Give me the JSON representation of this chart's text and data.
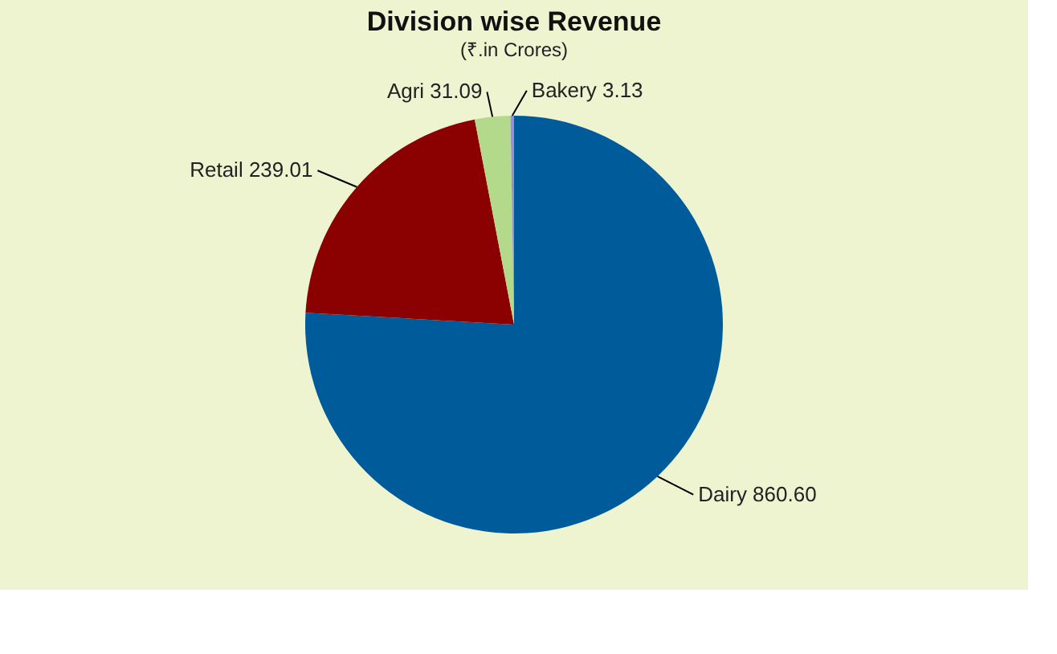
{
  "chart_data": {
    "type": "pie",
    "title": "Division wise Revenue",
    "subtitle": "(₹.in Crores)",
    "categories": [
      "Dairy",
      "Retail",
      "Agri",
      "Bakery"
    ],
    "values": [
      860.6,
      239.01,
      31.09,
      3.13
    ],
    "colors": [
      "#005b9a",
      "#8b0000",
      "#b3d98a",
      "#9a8fd0"
    ],
    "value_labels": [
      "860.60",
      "239.01",
      "31.09",
      "3.13"
    ],
    "legend": false
  }
}
